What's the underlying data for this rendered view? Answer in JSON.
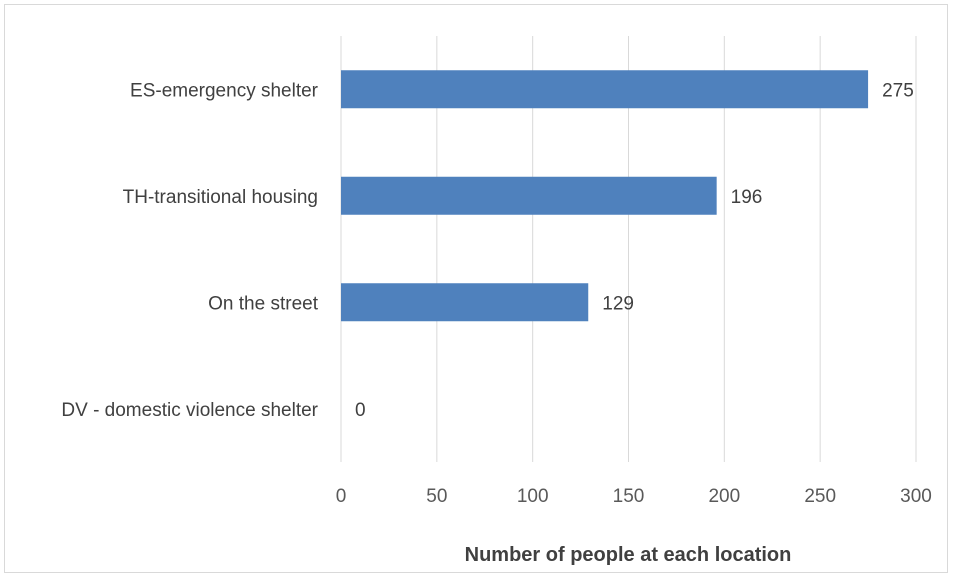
{
  "chart_data": {
    "type": "bar",
    "orientation": "horizontal",
    "categories": [
      "ES-emergency shelter",
      "TH-transitional housing",
      "On the street",
      "DV - domestic violence shelter"
    ],
    "values": [
      275,
      196,
      129,
      0
    ],
    "data_labels": [
      "275",
      "196",
      "129",
      "0"
    ],
    "title": "",
    "xlabel": "Number of people at each location",
    "ylabel": "",
    "xlim": [
      0,
      300
    ],
    "x_ticks": [
      0,
      50,
      100,
      150,
      200,
      250,
      300
    ],
    "x_tick_labels": [
      "0",
      "50",
      "100",
      "150",
      "200",
      "250",
      "300"
    ],
    "grid": true,
    "legend": "none",
    "colors": {
      "bar": "#4f81bd",
      "gridline": "#d9d9d9",
      "text": "#404040",
      "frame": "#d9d9d9"
    }
  }
}
